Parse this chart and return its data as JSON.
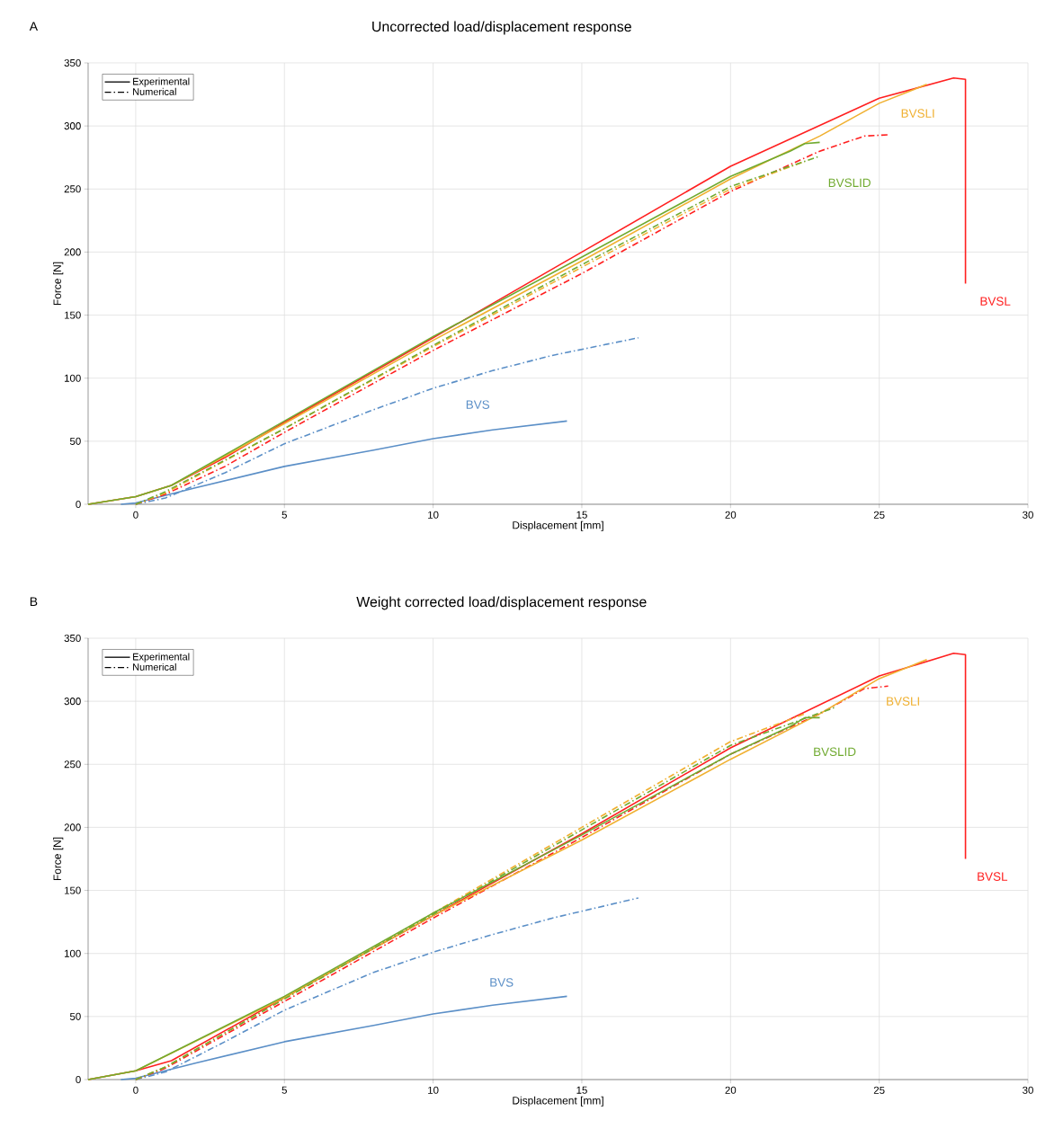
{
  "chart_data": [
    {
      "type": "line",
      "title": "Uncorrected load/displacement response",
      "xlabel": "Displacement [mm]",
      "ylabel": "Force [N]",
      "xlim": [
        -1.6,
        30
      ],
      "ylim": [
        0,
        350
      ],
      "xticks": [
        0,
        5,
        10,
        15,
        20,
        25,
        30
      ],
      "yticks": [
        0,
        50,
        100,
        150,
        200,
        250,
        300,
        350
      ],
      "grid": true,
      "legend": "top left",
      "series": [
        {
          "name": "BVS",
          "color": "#5b8fc7",
          "line_style": "solid",
          "x": [
            -0.5,
            0,
            2,
            5,
            8,
            10,
            12,
            14.5
          ],
          "values": [
            0,
            1,
            13,
            30,
            43,
            52,
            59,
            66
          ]
        },
        {
          "color": "#5b8fc7",
          "line_style": "dotted",
          "x": [
            0,
            1,
            3,
            5,
            8,
            10,
            12,
            14,
            16.9
          ],
          "values": [
            0,
            5,
            25,
            48,
            75,
            92,
            106,
            118,
            132
          ]
        },
        {
          "name": "BVSL",
          "color": "#ff2020",
          "line_style": "solid",
          "x": [
            -1.6,
            0,
            1.2,
            3,
            5,
            10,
            15,
            20,
            25,
            27.5,
            27.9,
            27.9
          ],
          "values": [
            0,
            6,
            15,
            37,
            65,
            132,
            200,
            268,
            322,
            338,
            337,
            175
          ]
        },
        {
          "color": "#ff2020",
          "line_style": "dotted",
          "x": [
            0,
            1,
            3,
            5,
            10,
            15,
            20,
            23,
            24.5,
            25.3
          ],
          "values": [
            0,
            8,
            30,
            57,
            122,
            183,
            248,
            280,
            292,
            293
          ]
        },
        {
          "name": "BVSLI",
          "color": "#f0b030",
          "line_style": "solid",
          "x": [
            -1.6,
            0,
            1.2,
            5,
            10,
            15,
            20,
            23,
            25,
            26.6
          ],
          "values": [
            0,
            6,
            15,
            64,
            130,
            193,
            258,
            292,
            318,
            333
          ]
        },
        {
          "color": "#f0b030",
          "line_style": "dotted",
          "x": [
            0,
            1,
            5,
            10,
            15,
            20,
            22.5
          ],
          "values": [
            0,
            9,
            60,
            125,
            188,
            250,
            272
          ]
        },
        {
          "name": "BVSLID",
          "color": "#70aa30",
          "line_style": "solid",
          "x": [
            -1.6,
            0,
            1.2,
            5,
            10,
            15,
            20,
            22,
            22.5,
            23
          ],
          "values": [
            0,
            6,
            15,
            66,
            133,
            196,
            260,
            280,
            286,
            287
          ]
        },
        {
          "color": "#70aa30",
          "line_style": "dotted",
          "x": [
            0,
            1,
            5,
            10,
            15,
            20,
            23
          ],
          "values": [
            0,
            10,
            60,
            126,
            190,
            252,
            276
          ]
        },
        {
          "name": "Experimental",
          "color": "#000000",
          "line_style": "solid"
        },
        {
          "name": "Numerical",
          "color": "#000000",
          "line_style": "dotted"
        }
      ],
      "annotations": [
        "A"
      ]
    },
    {
      "type": "line",
      "title": "Weight corrected load/displacement response",
      "xlabel": "Displacement [mm]",
      "ylabel": "Force [N]",
      "xlim": [
        -1.6,
        30
      ],
      "ylim": [
        0,
        350
      ],
      "xticks": [
        0,
        5,
        10,
        15,
        20,
        25,
        30
      ],
      "yticks": [
        0,
        50,
        100,
        150,
        200,
        250,
        300,
        350
      ],
      "grid": true,
      "legend": "top left",
      "series": [
        {
          "name": "BVS",
          "color": "#5b8fc7",
          "line_style": "solid",
          "x": [
            -0.5,
            0,
            2,
            5,
            8,
            10,
            12,
            14.5
          ],
          "values": [
            0,
            1,
            13,
            30,
            43,
            52,
            59,
            66
          ]
        },
        {
          "color": "#5b8fc7",
          "line_style": "dotted",
          "x": [
            0,
            1,
            3,
            5,
            8,
            10,
            12,
            14,
            16.9
          ],
          "values": [
            0,
            6,
            30,
            55,
            85,
            101,
            115,
            128,
            144
          ]
        },
        {
          "name": "BVSL",
          "color": "#ff2020",
          "line_style": "solid",
          "x": [
            -1.6,
            0,
            1.2,
            5,
            10,
            15,
            20,
            25,
            27.5,
            27.9,
            27.9
          ],
          "values": [
            0,
            7,
            15,
            65,
            130,
            195,
            263,
            320,
            338,
            337,
            175
          ]
        },
        {
          "color": "#ff2020",
          "line_style": "dotted",
          "x": [
            0,
            1,
            5,
            10,
            15,
            20,
            23,
            24.5,
            25.3
          ],
          "values": [
            0,
            9,
            62,
            128,
            192,
            258,
            290,
            310,
            312
          ]
        },
        {
          "name": "BVSLI",
          "color": "#f0b030",
          "line_style": "solid",
          "x": [
            -1.6,
            0,
            5,
            10,
            15,
            20,
            23,
            25,
            26.6
          ],
          "values": [
            0,
            7,
            65,
            130,
            190,
            254,
            290,
            318,
            333
          ]
        },
        {
          "color": "#f0b030",
          "line_style": "dotted",
          "x": [
            0,
            1,
            5,
            10,
            15,
            20,
            22.5
          ],
          "values": [
            0,
            10,
            64,
            132,
            200,
            268,
            290
          ]
        },
        {
          "name": "BVSLID",
          "color": "#70aa30",
          "line_style": "solid",
          "x": [
            -1.6,
            0,
            5,
            10,
            15,
            20,
            22,
            22.5,
            23
          ],
          "values": [
            0,
            7,
            66,
            132,
            194,
            258,
            280,
            287,
            287
          ]
        },
        {
          "color": "#70aa30",
          "line_style": "dotted",
          "x": [
            0,
            1,
            5,
            10,
            15,
            20,
            23.5
          ],
          "values": [
            0,
            10,
            64,
            131,
            198,
            265,
            295
          ]
        },
        {
          "name": "Experimental",
          "color": "#000000",
          "line_style": "solid"
        },
        {
          "name": "Numerical",
          "color": "#000000",
          "line_style": "dotted"
        }
      ],
      "annotations": [
        "B"
      ]
    }
  ]
}
